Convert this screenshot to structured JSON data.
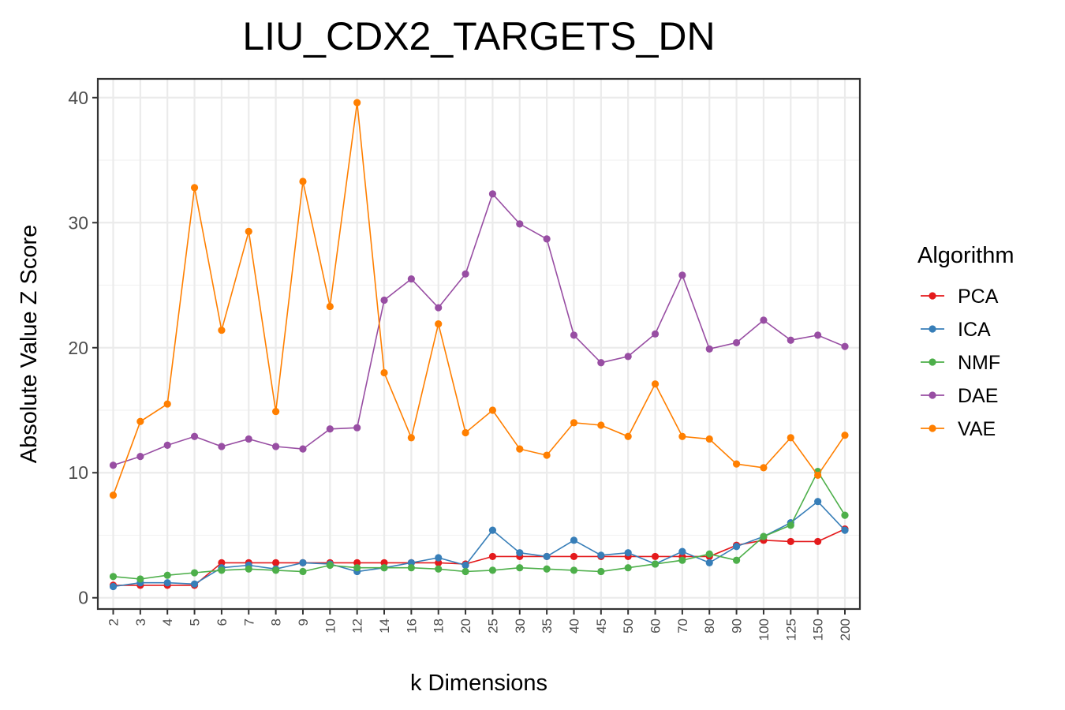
{
  "chart_data": {
    "type": "line",
    "title": "LIU_CDX2_TARGETS_DN",
    "xlabel": "k Dimensions",
    "ylabel": "Absolute Value Z Score",
    "categories": [
      "2",
      "3",
      "4",
      "5",
      "6",
      "7",
      "8",
      "9",
      "10",
      "12",
      "14",
      "16",
      "18",
      "20",
      "25",
      "30",
      "35",
      "40",
      "45",
      "50",
      "60",
      "70",
      "80",
      "90",
      "100",
      "125",
      "150",
      "200"
    ],
    "yticks": [
      0,
      10,
      20,
      30,
      40
    ],
    "ylim": [
      -0.9,
      41.5
    ],
    "grid": true,
    "legend_title": "Algorithm",
    "legend_position": "right",
    "series": [
      {
        "name": "PCA",
        "color": "#e41a1c",
        "values": [
          1.0,
          1.0,
          1.0,
          1.0,
          2.8,
          2.8,
          2.8,
          2.8,
          2.8,
          2.8,
          2.8,
          2.8,
          2.8,
          2.7,
          3.3,
          3.3,
          3.3,
          3.3,
          3.3,
          3.3,
          3.3,
          3.3,
          3.3,
          4.2,
          4.6,
          4.5,
          4.5,
          5.5
        ]
      },
      {
        "name": "ICA",
        "color": "#377eb8",
        "values": [
          0.9,
          1.2,
          1.2,
          1.1,
          2.4,
          2.6,
          2.3,
          2.8,
          2.7,
          2.1,
          2.4,
          2.8,
          3.2,
          2.6,
          5.4,
          3.6,
          3.3,
          4.6,
          3.4,
          3.6,
          2.7,
          3.7,
          2.8,
          4.1,
          4.9,
          6.0,
          7.7,
          5.4
        ]
      },
      {
        "name": "NMF",
        "color": "#4daf4a",
        "values": [
          1.7,
          1.5,
          1.8,
          2.0,
          2.2,
          2.3,
          2.2,
          2.1,
          2.6,
          2.4,
          2.4,
          2.4,
          2.3,
          2.1,
          2.2,
          2.4,
          2.3,
          2.2,
          2.1,
          2.4,
          2.7,
          3.0,
          3.5,
          3.0,
          4.9,
          5.8,
          10.1,
          6.6
        ]
      },
      {
        "name": "DAE",
        "color": "#984ea3",
        "values": [
          10.6,
          11.3,
          12.2,
          12.9,
          12.1,
          12.7,
          12.1,
          11.9,
          13.5,
          13.6,
          23.8,
          25.5,
          23.2,
          25.9,
          32.3,
          29.9,
          28.7,
          21.0,
          18.8,
          19.3,
          21.1,
          25.8,
          19.9,
          20.4,
          22.2,
          20.6,
          21.0,
          20.1
        ]
      },
      {
        "name": "VAE",
        "color": "#ff7f00",
        "values": [
          8.2,
          14.1,
          15.5,
          32.8,
          21.4,
          29.3,
          14.9,
          33.3,
          23.3,
          39.6,
          18.0,
          12.8,
          21.9,
          13.2,
          15.0,
          11.9,
          11.4,
          14.0,
          13.8,
          12.9,
          17.1,
          12.9,
          12.7,
          10.7,
          10.4,
          12.8,
          9.8,
          13.0
        ]
      }
    ]
  }
}
